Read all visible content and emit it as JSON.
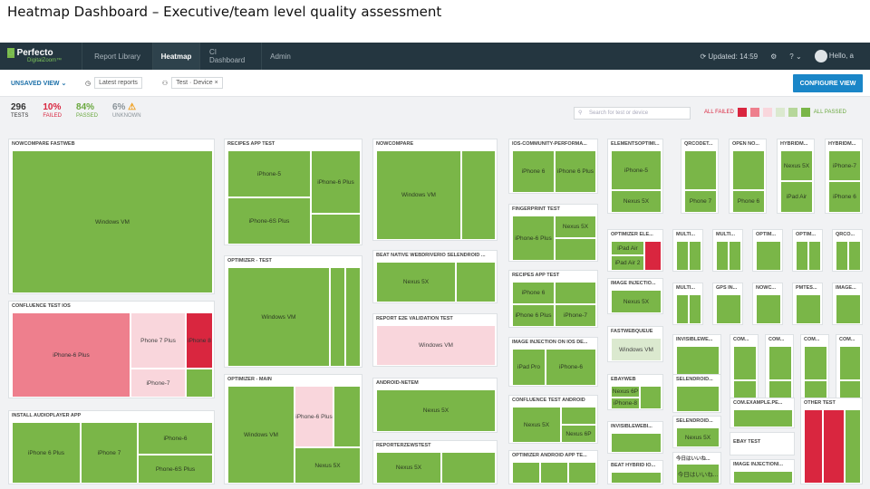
{
  "slide_title": "Heatmap Dashboard – Executive/team level quality assessment",
  "topbar": {
    "logo_line1_prefix": "G",
    "logo_line1": "Perfecto",
    "logo_line2": "DigitalZoom™",
    "tabs": [
      "Report Library",
      "Heatmap",
      "CI Dashboard",
      "Admin"
    ],
    "updated": "Updated: 14:59",
    "hello": "Hello, a"
  },
  "subbar": {
    "unsaved_view": "UNSAVED VIEW",
    "latest_reports": "Latest reports",
    "filter_chip_1": "Test",
    "filter_chip_2": "Device",
    "configure_view": "CONFIGURE VIEW"
  },
  "stats": {
    "tests_num": "296",
    "tests_label": "TESTS",
    "failed_num": "10%",
    "failed_label": "FAILED",
    "passed_num": "84%",
    "passed_label": "PASSED",
    "unknown_num": "6%",
    "unknown_label": "UNKNOWN"
  },
  "search_placeholder": "Search for test or device",
  "legend": {
    "all_failed": "ALL FAILED",
    "all_passed": "ALL PASSED",
    "colors": [
      "#d9263f",
      "#ee7f8d",
      "#f9d6dc",
      "#dbe9cf",
      "#b6d79a",
      "#7ab648"
    ]
  },
  "colors": {
    "passed": "#7ab648",
    "failed": "#d9263f",
    "mostly_failed": "#ee7f8d",
    "partial_failed": "#f9d6dc",
    "unknown": "#dbe9cf",
    "accent": "#1a86c8"
  },
  "tiles": {
    "t1": {
      "title": "NOWCOMPARE FASTWEB",
      "c1": "Windows VM"
    },
    "t2": {
      "title": "CONFLUENCE TEST IOS",
      "c1": "iPhone-6 Plus",
      "c2": "Phone 7 Plus",
      "c3": "iPhone 8",
      "c4": "iPhone-7"
    },
    "t3": {
      "title": "INSTALL AUDIOPLAYER APP",
      "c1": "iPhone 6 Plus",
      "c2": "iPhone 7",
      "c3": "iPhone-6",
      "c4": "Phone-6S Plus"
    },
    "t4": {
      "title": "RECIPES APP TEST",
      "c1": "iPhone-5",
      "c2": "iPhone-6 Plus",
      "c3": "iPhone-6S Plus"
    },
    "t5": {
      "title": "OPTIMIZER - TEST",
      "c1": "Windows VM"
    },
    "t6": {
      "title": "OPTIMIZER - MAIN",
      "c1": "Windows VM",
      "c2": "iPhone-6 Plus",
      "c3": "Nexus 5X"
    },
    "t7": {
      "title": "NOWCOMPARE",
      "c1": "Windows VM"
    },
    "t8": {
      "title": "BEAT NATIVE WEBDRIVERIO SELENDROID ...",
      "c1": "Nexus 5X"
    },
    "t9": {
      "title": "REPORT E2E VALIDATION TEST",
      "c1": "Windows VM"
    },
    "t10": {
      "title": "ANDROID-NETEM",
      "c1": "Nexus 5X"
    },
    "t11": {
      "title": "REPORTERZEWSTEST",
      "c1": "Nexus 5X"
    },
    "t12": {
      "title": "IOS-COMMUNITY-PERFORMA...",
      "c1": "iPhone 6",
      "c2": "iPhone 6 Plus"
    },
    "t13": {
      "title": "FINGERPRINT TEST",
      "c1": "iPhone-6 Plus",
      "c2": "Nexus 5X"
    },
    "t14": {
      "title": "RECIPES APP TEST",
      "c1": "iPhone 6",
      "c2": "iPhone 6 Plus",
      "c3": "iPhone-7"
    },
    "t15": {
      "title": "IMAGE INJECTION ON IOS DE...",
      "c1": "iPad Pro",
      "c2": "iPhone-6"
    },
    "t16": {
      "title": "CONFLUENCE TEST ANDROID",
      "c1": "Nexus 5X",
      "c2": "Nexus 6P"
    },
    "t17": {
      "title": "OPTIMIZER ANDROID APP TE..."
    },
    "t18": {
      "title": "ELEMENTSOPTIMI...",
      "c1": "iPhone-5",
      "c2": "Nexus 5X"
    },
    "t19": {
      "title": "OPTIMIZER ELE...",
      "c1": "iPad Air",
      "c2": "iPad Air 2"
    },
    "t20": {
      "title": "IMAGE INJECTIO...",
      "c1": "Nexus 5X"
    },
    "t21": {
      "title": "FASTWEBQUEUE",
      "c1": "Windows VM"
    },
    "t22": {
      "title": "EBAYWEB",
      "c1": "Nexus 6P",
      "c2": "iPhone-8"
    },
    "t23": {
      "title": "INVISIBLEWEBI..."
    },
    "t24": {
      "title": "BEAT HYBRID IO..."
    },
    "t25": {
      "title": "QRCODET...",
      "c1": "Phone 7"
    },
    "t26": {
      "title": "OPEN NO...",
      "c1": "Phone 6"
    },
    "t27": {
      "title": "HYBRIDM...",
      "c1": "Nexus 5X",
      "c2": "iPad Air"
    },
    "t28": {
      "title": "HYBRIDM...",
      "c1": "iPhone-7",
      "c2": "iPhone 6"
    },
    "t29": {
      "title": "MULTI..."
    },
    "t30": {
      "title": "MULTI..."
    },
    "t31": {
      "title": "OPTIM..."
    },
    "t32": {
      "title": "OPTIM..."
    },
    "t33": {
      "title": "QRCO..."
    },
    "t34": {
      "title": "MULTI..."
    },
    "t35": {
      "title": "GPS IN..."
    },
    "t36": {
      "title": "NOWC..."
    },
    "t37": {
      "title": "PMTES..."
    },
    "t38": {
      "title": "IMAGE..."
    },
    "t39": {
      "title": "INVISIBLEWE..."
    },
    "t40": {
      "title": "COM..."
    },
    "t41": {
      "title": "COM..."
    },
    "t42": {
      "title": "COM..."
    },
    "t43": {
      "title": "COM..."
    },
    "t44": {
      "title": "SELENDROID..."
    },
    "t45": {
      "title": "COM.EXAMPLE.PE..."
    },
    "t46": {
      "title": "OTHER TEST"
    },
    "t47": {
      "title": "SELENDROID...",
      "c1": "Nexus 5X"
    },
    "t48": {
      "title": "EBAY TEST"
    },
    "t49": {
      "title": "今日はいいね...",
      "c1": "今日はいいね..."
    },
    "t50": {
      "title": "IMAGE INJECTIONI..."
    }
  }
}
